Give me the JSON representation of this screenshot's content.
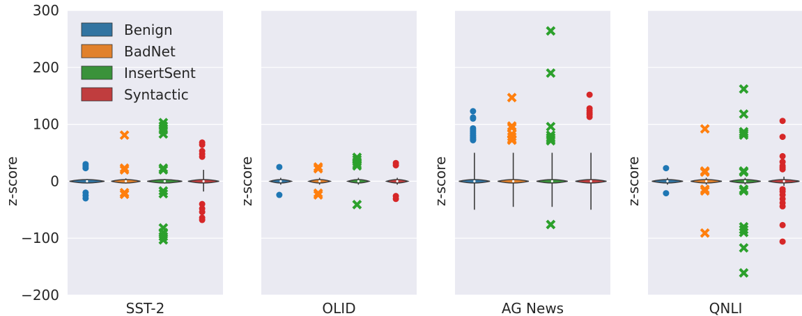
{
  "colors": {
    "panel_bg": "#eaeaf2",
    "grid": "#ffffff",
    "violin_stroke": "#3a3a3a",
    "series": {
      "Benign": "#1f77b4",
      "BadNet": "#ff7f0e",
      "InsertSent": "#2ca02c",
      "Syntactic": "#d62728"
    },
    "legend_fill": {
      "Benign": "#3274a1",
      "BadNet": "#e1812c",
      "InsertSent": "#3a923a",
      "Syntactic": "#c03d3e"
    }
  },
  "chart_data": {
    "type": "violin-strip",
    "ylabel": "z-score",
    "ylim": [
      -200,
      300
    ],
    "yticks": [
      300,
      200,
      100,
      0,
      -100,
      -200
    ],
    "ytick_labels": [
      "300",
      "200",
      "100",
      "0",
      "−100",
      "−200"
    ],
    "legend": {
      "placement": "top-left (first panel)",
      "entries": [
        "Benign",
        "BadNet",
        "InsertSent",
        "Syntactic"
      ]
    },
    "groups": [
      "Benign",
      "BadNet",
      "InsertSent",
      "Syntactic"
    ],
    "markers": {
      "Benign": "circle",
      "BadNet": "cross",
      "InsertSent": "cross",
      "Syntactic": "circle"
    },
    "panels": [
      {
        "title": "SST-2",
        "violin": {
          "Benign": {
            "lo": -3,
            "hi": 4,
            "width": 0.9
          },
          "BadNet": {
            "lo": -4,
            "hi": 5,
            "width": 0.75
          },
          "InsertSent": {
            "lo": -4,
            "hi": 4,
            "width": 0.9
          },
          "Syntactic": {
            "lo": -18,
            "hi": 20,
            "width": 0.8
          }
        },
        "outliers": {
          "Benign": [
            30,
            27,
            23,
            -20,
            -25,
            -30
          ],
          "BadNet": [
            81,
            23,
            20,
            -20,
            -23
          ],
          "InsertSent": [
            103,
            97,
            90,
            83,
            23,
            20,
            -17,
            -22,
            -82,
            -90,
            -97,
            -103
          ],
          "Syntactic": [
            68,
            64,
            53,
            48,
            43,
            -40,
            -48,
            -54,
            -64,
            -68
          ]
        }
      },
      {
        "title": "OLID",
        "violin": {
          "Benign": {
            "lo": -6,
            "hi": 6,
            "width": 0.55
          },
          "BadNet": {
            "lo": -6,
            "hi": 6,
            "width": 0.55
          },
          "InsertSent": {
            "lo": -6,
            "hi": 6,
            "width": 0.55
          },
          "Syntactic": {
            "lo": -6,
            "hi": 6,
            "width": 0.55
          }
        },
        "outliers": {
          "Benign": [
            25,
            -24
          ],
          "BadNet": [
            25,
            22,
            -21,
            -24
          ],
          "InsertSent": [
            42,
            38,
            34,
            30,
            27,
            -41
          ],
          "Syntactic": [
            32,
            28,
            -26,
            -31
          ]
        }
      },
      {
        "title": "AG News",
        "violin": {
          "Benign": {
            "lo": -50,
            "hi": 50,
            "width": 0.8
          },
          "BadNet": {
            "lo": -45,
            "hi": 50,
            "width": 0.8
          },
          "InsertSent": {
            "lo": -45,
            "hi": 50,
            "width": 0.8
          },
          "Syntactic": {
            "lo": -50,
            "hi": 50,
            "width": 0.8
          }
        },
        "outliers": {
          "Benign": [
            123,
            112,
            110,
            93,
            90,
            87,
            84,
            81,
            79,
            77,
            75,
            73,
            72
          ],
          "BadNet": [
            147,
            97,
            94,
            83,
            78,
            74,
            72
          ],
          "InsertSent": [
            264,
            190,
            96,
            81,
            77,
            74,
            71,
            -76
          ],
          "Syntactic": [
            152,
            128,
            124,
            120,
            117,
            113
          ]
        }
      },
      {
        "title": "QNLI",
        "violin": {
          "Benign": {
            "lo": -6,
            "hi": 6,
            "width": 0.8
          },
          "BadNet": {
            "lo": -6,
            "hi": 6,
            "width": 0.8
          },
          "InsertSent": {
            "lo": -6,
            "hi": 6,
            "width": 0.8
          },
          "Syntactic": {
            "lo": -8,
            "hi": 8,
            "width": 0.8
          }
        },
        "outliers": {
          "Benign": [
            23,
            -21
          ],
          "BadNet": [
            92,
            18,
            16,
            -14,
            -17,
            -91
          ],
          "InsertSent": [
            162,
            118,
            87,
            84,
            81,
            18,
            16,
            -14,
            -17,
            -80,
            -85,
            -90,
            -117,
            -161
          ],
          "Syntactic": [
            106,
            78,
            44,
            34,
            27,
            24,
            21,
            -14,
            -18,
            -24,
            -31,
            -38,
            -44,
            -77,
            -106
          ]
        }
      }
    ]
  }
}
